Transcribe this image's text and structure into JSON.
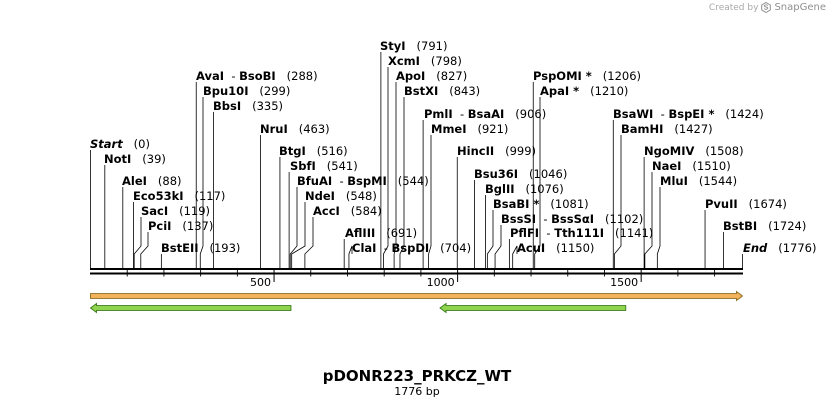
{
  "credit": {
    "text": "Created by",
    "brand": "SnapGene"
  },
  "plasmid": {
    "name": "pDONR223_PRKCZ_WT",
    "length_label": "1776 bp",
    "length": 1776
  },
  "ruler": {
    "ticks": [
      {
        "pos": 500,
        "label": "500"
      },
      {
        "pos": 1000,
        "label": "1000"
      },
      {
        "pos": 1500,
        "label": "1500"
      }
    ]
  },
  "sites": [
    {
      "id": "start",
      "label": "Start",
      "pos_label": "(0)",
      "pos": 0,
      "style": "endpoint"
    },
    {
      "id": "noti",
      "label": "NotI",
      "pos_label": "(39)",
      "pos": 39
    },
    {
      "id": "alei",
      "label": "AleI",
      "pos_label": "(88)",
      "pos": 88
    },
    {
      "id": "eco53ki",
      "label": "Eco53kI",
      "pos_label": "(117)",
      "pos": 117
    },
    {
      "id": "saci",
      "label": "SacI",
      "pos_label": "(119)",
      "pos": 119
    },
    {
      "id": "pcii",
      "label": "PciI",
      "pos_label": "(137)",
      "pos": 137
    },
    {
      "id": "bsteii",
      "label": "BstEII",
      "pos_label": "(193)",
      "pos": 193
    },
    {
      "id": "ava-bsobi",
      "label": "AvaI",
      "label2": "BsoBI",
      "pos_label": "(288)",
      "pos": 288
    },
    {
      "id": "bpu10i",
      "label": "Bpu10I",
      "pos_label": "(299)",
      "pos": 299
    },
    {
      "id": "bbsi",
      "label": "BbsI",
      "pos_label": "(335)",
      "pos": 335
    },
    {
      "id": "nrui",
      "label": "NruI",
      "pos_label": "(463)",
      "pos": 463
    },
    {
      "id": "btgi",
      "label": "BtgI",
      "pos_label": "(516)",
      "pos": 516
    },
    {
      "id": "sbfi",
      "label": "SbfI",
      "pos_label": "(541)",
      "pos": 541
    },
    {
      "id": "bfuai-bspmi",
      "label": "BfuAI",
      "label2": "BspMI",
      "pos_label": "(544)",
      "pos": 544
    },
    {
      "id": "ndei",
      "label": "NdeI",
      "pos_label": "(548)",
      "pos": 548
    },
    {
      "id": "acci",
      "label": "AccI",
      "pos_label": "(584)",
      "pos": 584
    },
    {
      "id": "aflii",
      "label": "AflIII",
      "pos_label": "(691)",
      "pos": 691
    },
    {
      "id": "clai-bspdi",
      "label": "ClaI",
      "label2": "BspDI",
      "pos_label": "(704)",
      "pos": 704
    },
    {
      "id": "styi",
      "label": "StyI",
      "pos_label": "(791)",
      "pos": 791
    },
    {
      "id": "xcmi",
      "label": "XcmI",
      "pos_label": "(798)",
      "pos": 798
    },
    {
      "id": "apoi",
      "label": "ApoI",
      "pos_label": "(827)",
      "pos": 827
    },
    {
      "id": "bstxi",
      "label": "BstXI",
      "pos_label": "(843)",
      "pos": 843
    },
    {
      "id": "pmli-bsaai",
      "label": "PmlI",
      "label2": "BsaAI",
      "pos_label": "(906)",
      "pos": 906
    },
    {
      "id": "mmei",
      "label": "MmeI",
      "pos_label": "(921)",
      "pos": 921
    },
    {
      "id": "hincii",
      "label": "HincII",
      "pos_label": "(999)",
      "pos": 999
    },
    {
      "id": "bsu36i",
      "label": "Bsu36I",
      "pos_label": "(1046)",
      "pos": 1046
    },
    {
      "id": "bglii",
      "label": "BglII",
      "pos_label": "(1076)",
      "pos": 1076
    },
    {
      "id": "bsabi",
      "label": "BsaBI *",
      "pos_label": "(1081)",
      "pos": 1081
    },
    {
      "id": "bsssi-bsssai",
      "label": "BssSI",
      "label2": "BssSαI",
      "pos_label": "(1102)",
      "pos": 1102
    },
    {
      "id": "pflfi-tth111i",
      "label": "PflFI",
      "label2": "Tth111I",
      "pos_label": "(1141)",
      "pos": 1141
    },
    {
      "id": "acui",
      "label": "AcuI",
      "pos_label": "(1150)",
      "pos": 1150
    },
    {
      "id": "pspomi",
      "label": "PspOMI *",
      "pos_label": "(1206)",
      "pos": 1206
    },
    {
      "id": "apai",
      "label": "ApaI *",
      "pos_label": "(1210)",
      "pos": 1210
    },
    {
      "id": "bsawi-bspei",
      "label": "BsaWI",
      "label2": "BspEI *",
      "pos_label": "(1424)",
      "pos": 1424
    },
    {
      "id": "bamhi",
      "label": "BamHI",
      "pos_label": "(1427)",
      "pos": 1427
    },
    {
      "id": "ngomiv",
      "label": "NgoMIV",
      "pos_label": "(1508)",
      "pos": 1508
    },
    {
      "id": "naei",
      "label": "NaeI",
      "pos_label": "(1510)",
      "pos": 1510
    },
    {
      "id": "mlui",
      "label": "MluI",
      "pos_label": "(1544)",
      "pos": 1544
    },
    {
      "id": "pvuii",
      "label": "PvuII",
      "pos_label": "(1674)",
      "pos": 1674
    },
    {
      "id": "bstbi",
      "label": "BstBI",
      "pos_label": "(1724)",
      "pos": 1724
    },
    {
      "id": "end",
      "label": "End",
      "pos_label": "(1776)",
      "pos": 1776,
      "style": "endpoint"
    }
  ],
  "features": [
    {
      "name": "orange-feature",
      "start": 0,
      "end": 1776,
      "direction": "forward",
      "color": "#f2b35c",
      "outline": "#8a6a1e",
      "track": 0
    },
    {
      "name": "green-feature-left",
      "start": 0,
      "end": 546,
      "direction": "reverse",
      "color": "#8fd44e",
      "outline": "#3b7a17",
      "track": 1
    },
    {
      "name": "green-feature-right",
      "start": 952,
      "end": 1458,
      "direction": "reverse",
      "color": "#8fd44e",
      "outline": "#3b7a17",
      "track": 1
    }
  ],
  "colors": {
    "backbone": "#000000",
    "label_line": "#000000"
  }
}
